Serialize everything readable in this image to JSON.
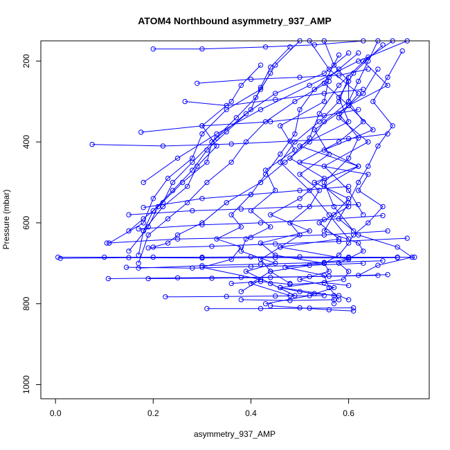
{
  "chart_data": {
    "type": "line",
    "title": "ATOM4 Northbound asymmetry_937_AMP",
    "xlabel": "asymmetry_937_AMP",
    "ylabel": "Pressure (mbar)",
    "xlim": [
      -0.03,
      0.765
    ],
    "ylim": [
      1035,
      150
    ],
    "y_reversed": true,
    "xticks": [
      0.0,
      0.2,
      0.4,
      0.6
    ],
    "xtick_labels": [
      "0.0",
      "0.2",
      "0.4",
      "0.6"
    ],
    "yticks": [
      200,
      400,
      600,
      800,
      1000
    ],
    "ytick_labels": [
      "200",
      "400",
      "600",
      "800",
      "1000"
    ],
    "grid": false,
    "series_color": "#0000ff",
    "marker": "open-circle",
    "series": [
      {
        "x": [
          0.55,
          0.57,
          0.6,
          0.6,
          0.63,
          0.58,
          0.5,
          0.64,
          0.62,
          0.67,
          0.64,
          0.61,
          0.6,
          0.58,
          0.55,
          0.56,
          0.5,
          0.57,
          0.52,
          0.43
        ],
        "y": [
          150,
          210,
          250,
          300,
          350,
          400,
          450,
          480,
          520,
          560,
          600,
          630,
          650,
          680,
          700,
          720,
          740,
          760,
          780,
          800
        ]
      },
      {
        "x": [
          0.69,
          0.63,
          0.68,
          0.6,
          0.65,
          0.55,
          0.62,
          0.53,
          0.6,
          0.57,
          0.55,
          0.62,
          0.63,
          0.58,
          0.6,
          0.59,
          0.46,
          0.57,
          0.57
        ],
        "y": [
          150,
          200,
          260,
          310,
          370,
          420,
          460,
          500,
          540,
          580,
          620,
          650,
          670,
          700,
          720,
          740,
          760,
          780,
          800
        ]
      },
      {
        "x": [
          0.67,
          0.61,
          0.58,
          0.6,
          0.5,
          0.62,
          0.55,
          0.6,
          0.54,
          0.58,
          0.46,
          0.6,
          0.47,
          0.55,
          0.56,
          0.58
        ],
        "y": [
          160,
          230,
          290,
          350,
          410,
          460,
          510,
          560,
          600,
          640,
          660,
          690,
          710,
          730,
          760,
          790
        ]
      },
      {
        "x": [
          0.64,
          0.58,
          0.54,
          0.52,
          0.48,
          0.55,
          0.5,
          0.44,
          0.52,
          0.42,
          0.45,
          0.55,
          0.44,
          0.4,
          0.48
        ],
        "y": [
          190,
          260,
          330,
          390,
          440,
          490,
          540,
          580,
          620,
          650,
          680,
          700,
          720,
          750,
          780
        ]
      },
      {
        "x": [
          0.62,
          0.56,
          0.55,
          0.46,
          0.49,
          0.43,
          0.45,
          0.4,
          0.44,
          0.39,
          0.38,
          0.45,
          0.39,
          0.44,
          0.49
        ],
        "y": [
          180,
          240,
          300,
          360,
          420,
          470,
          520,
          570,
          610,
          640,
          670,
          700,
          720,
          750,
          780
        ]
      },
      {
        "x": [
          0.58,
          0.53,
          0.5,
          0.49,
          0.46,
          0.43,
          0.4,
          0.36,
          0.38,
          0.33,
          0.38,
          0.36,
          0.3,
          0.42,
          0.38
        ],
        "y": [
          220,
          270,
          320,
          380,
          430,
          480,
          530,
          580,
          610,
          640,
          660,
          690,
          710,
          740,
          770
        ]
      },
      {
        "x": [
          0.66,
          0.64,
          0.62,
          0.6,
          0.55,
          0.52,
          0.47,
          0.42,
          0.35,
          0.3,
          0.25,
          0.23,
          0.2
        ],
        "y": [
          150,
          200,
          250,
          300,
          350,
          400,
          450,
          500,
          550,
          600,
          630,
          650,
          660
        ]
      },
      {
        "x": [
          0.71,
          0.68,
          0.65,
          0.69,
          0.66,
          0.64,
          0.62,
          0.6,
          0.58,
          0.62,
          0.7,
          0.73,
          0.66,
          0.62
        ],
        "y": [
          175,
          240,
          300,
          360,
          410,
          460,
          500,
          550,
          590,
          630,
          660,
          685,
          705,
          730
        ]
      },
      {
        "x": [
          0.58,
          0.55,
          0.6,
          0.53,
          0.56,
          0.5,
          0.54,
          0.52,
          0.48,
          0.5,
          0.46,
          0.42,
          0.44,
          0.48
        ],
        "y": [
          185,
          255,
          310,
          370,
          430,
          480,
          520,
          560,
          600,
          630,
          660,
          690,
          720,
          750
        ]
      },
      {
        "x": [
          0.6,
          0.55,
          0.45,
          0.39,
          0.33,
          0.28,
          0.24,
          0.22,
          0.18,
          0.15
        ],
        "y": [
          180,
          230,
          280,
          330,
          390,
          450,
          500,
          550,
          590,
          620
        ]
      },
      {
        "x": [
          0.5,
          0.45,
          0.42,
          0.35,
          0.3,
          0.28,
          0.23,
          0.2,
          0.18,
          0.11
        ],
        "y": [
          150,
          210,
          270,
          320,
          380,
          440,
          490,
          540,
          600,
          650
        ]
      },
      {
        "x": [
          0.42,
          0.38,
          0.36,
          0.3,
          0.33,
          0.29,
          0.27,
          0.22,
          0.18,
          0.17
        ],
        "y": [
          210,
          260,
          300,
          360,
          410,
          460,
          510,
          560,
          620,
          680
        ]
      },
      {
        "x": [
          0.44,
          0.41,
          0.37,
          0.32,
          0.31,
          0.26,
          0.21,
          0.19,
          0.15
        ],
        "y": [
          230,
          290,
          340,
          400,
          450,
          500,
          560,
          610,
          670
        ]
      },
      {
        "x": [
          0.48,
          0.44,
          0.42,
          0.4,
          0.35,
          0.31,
          0.28,
          0.24,
          0.2,
          0.18
        ],
        "y": [
          165,
          215,
          265,
          320,
          375,
          420,
          470,
          520,
          570,
          620
        ]
      },
      {
        "x": [
          0.56,
          0.49,
          0.43,
          0.39,
          0.36,
          0.31,
          0.27,
          0.23,
          0.19,
          0.17
        ],
        "y": [
          250,
          300,
          350,
          400,
          450,
          500,
          550,
          590,
          630,
          700
        ]
      },
      {
        "x": [
          0.72,
          0.62,
          0.52,
          0.42,
          0.33,
          0.25,
          0.18
        ],
        "y": [
          150,
          200,
          260,
          320,
          380,
          440,
          500
        ]
      },
      {
        "x": [
          0.2,
          0.3,
          0.43,
          0.53,
          0.63
        ],
        "y": [
          170,
          170,
          165,
          160,
          150
        ]
      },
      {
        "x": [
          0.29,
          0.4,
          0.5,
          0.58,
          0.64
        ],
        "y": [
          255,
          245,
          240,
          235,
          220
        ]
      },
      {
        "x": [
          0.265,
          0.35,
          0.45,
          0.55,
          0.63
        ],
        "y": [
          300,
          310,
          295,
          280,
          270
        ]
      },
      {
        "x": [
          0.175,
          0.3,
          0.44,
          0.55,
          0.62
        ],
        "y": [
          376,
          360,
          350,
          335,
          320
        ]
      },
      {
        "x": [
          0.075,
          0.22,
          0.36,
          0.48,
          0.6,
          0.68
        ],
        "y": [
          406,
          410,
          405,
          398,
          392,
          380
        ]
      },
      {
        "x": [
          0.18,
          0.3,
          0.4,
          0.5,
          0.6
        ],
        "y": [
          562,
          540,
          530,
          520,
          510
        ]
      },
      {
        "x": [
          0.15,
          0.28,
          0.38,
          0.5,
          0.62
        ],
        "y": [
          580,
          570,
          566,
          560,
          555
        ]
      },
      {
        "x": [
          0.17,
          0.3,
          0.42,
          0.55,
          0.67
        ],
        "y": [
          615,
          605,
          600,
          592,
          582
        ]
      },
      {
        "x": [
          0.105,
          0.25,
          0.4,
          0.55,
          0.68
        ],
        "y": [
          650,
          640,
          636,
          630,
          620
        ]
      },
      {
        "x": [
          0.19,
          0.32,
          0.45,
          0.58,
          0.72
        ],
        "y": [
          662,
          658,
          652,
          646,
          638
        ]
      },
      {
        "x": [
          0.005,
          0.1,
          0.2,
          0.3,
          0.4,
          0.5,
          0.6,
          0.7,
          0.735
        ],
        "y": [
          685,
          685,
          685,
          685,
          684,
          684,
          685,
          685,
          685
        ]
      },
      {
        "x": [
          0.01,
          0.15,
          0.3,
          0.45,
          0.6,
          0.7
        ],
        "y": [
          688,
          686,
          687,
          686,
          687,
          686
        ]
      },
      {
        "x": [
          0.17,
          0.3,
          0.42,
          0.55,
          0.67
        ],
        "y": [
          712,
          706,
          702,
          698,
          694
        ]
      },
      {
        "x": [
          0.145,
          0.28,
          0.4,
          0.52,
          0.63
        ],
        "y": [
          710,
          712,
          708,
          705,
          700
        ]
      },
      {
        "x": [
          0.108,
          0.25,
          0.38,
          0.52,
          0.66
        ],
        "y": [
          738,
          736,
          735,
          733,
          730
        ]
      },
      {
        "x": [
          0.19,
          0.32,
          0.44,
          0.56,
          0.68
        ],
        "y": [
          738,
          737,
          735,
          732,
          728
        ]
      },
      {
        "x": [
          0.225,
          0.35,
          0.45,
          0.55
        ],
        "y": [
          783,
          782,
          781,
          780
        ]
      },
      {
        "x": [
          0.31,
          0.42,
          0.52,
          0.61
        ],
        "y": [
          812,
          812,
          811,
          810
        ]
      },
      {
        "x": [
          0.38,
          0.48,
          0.57
        ],
        "y": [
          790,
          792,
          790
        ]
      },
      {
        "x": [
          0.44,
          0.5,
          0.56,
          0.61
        ],
        "y": [
          805,
          810,
          815,
          818
        ]
      },
      {
        "x": [
          0.46,
          0.5,
          0.53,
          0.58,
          0.6
        ],
        "y": [
          760,
          770,
          775,
          780,
          790
        ]
      },
      {
        "x": [
          0.36,
          0.42,
          0.48,
          0.55,
          0.6
        ],
        "y": [
          750,
          745,
          752,
          748,
          755
        ]
      },
      {
        "x": [
          0.52,
          0.56,
          0.62,
          0.58,
          0.64,
          0.55,
          0.6,
          0.63
        ],
        "y": [
          150,
          220,
          280,
          340,
          400,
          460,
          520,
          580
        ]
      },
      {
        "x": [
          0.66,
          0.63,
          0.58,
          0.62,
          0.6,
          0.55,
          0.57,
          0.61
        ],
        "y": [
          220,
          280,
          330,
          390,
          440,
          500,
          560,
          620
        ]
      },
      {
        "x": [
          0.6,
          0.58,
          0.54,
          0.49,
          0.46,
          0.52,
          0.56,
          0.6
        ],
        "y": [
          240,
          300,
          350,
          400,
          450,
          520,
          580,
          640
        ]
      }
    ]
  }
}
